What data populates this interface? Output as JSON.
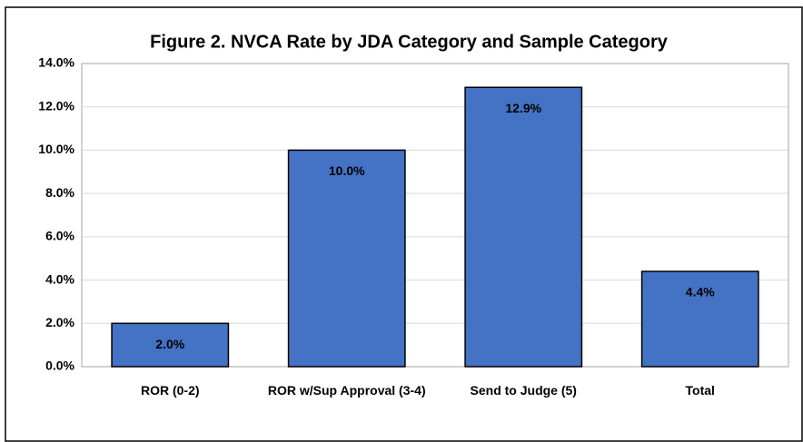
{
  "chart_data": {
    "type": "bar",
    "title": "Figure 2. NVCA Rate by JDA Category and Sample Category",
    "categories": [
      "ROR (0-2)",
      "ROR w/Sup Approval (3-4)",
      "Send to Judge (5)",
      "Total"
    ],
    "values": [
      2.0,
      10.0,
      12.9,
      4.4
    ],
    "value_labels": [
      "2.0%",
      "10.0%",
      "12.9%",
      "4.4%"
    ],
    "color": "#4472c4",
    "ylim": [
      0,
      14
    ],
    "yticks": [
      {
        "value": 0,
        "label": "0.0%"
      },
      {
        "value": 2,
        "label": "2.0%"
      },
      {
        "value": 4,
        "label": "4.0%"
      },
      {
        "value": 6,
        "label": "6.0%"
      },
      {
        "value": 8,
        "label": "8.0%"
      },
      {
        "value": 10,
        "label": "10.0%"
      },
      {
        "value": 12,
        "label": "12.0%"
      },
      {
        "value": 14,
        "label": "14.0%"
      }
    ],
    "grid": true
  }
}
